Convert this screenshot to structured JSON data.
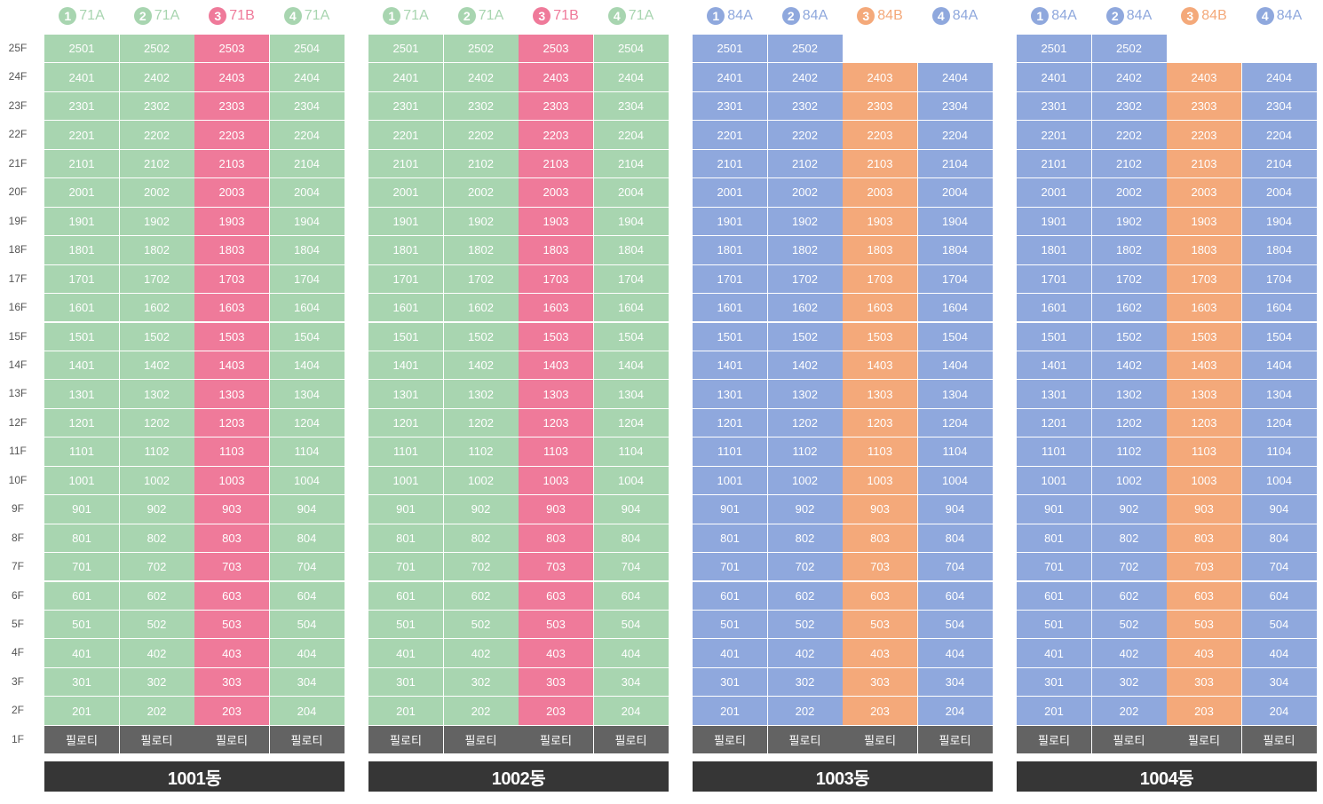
{
  "floors": [
    "25F",
    "24F",
    "23F",
    "22F",
    "21F",
    "20F",
    "19F",
    "18F",
    "17F",
    "16F",
    "15F",
    "14F",
    "13F",
    "12F",
    "11F",
    "10F",
    "9F",
    "8F",
    "7F",
    "6F",
    "5F",
    "4F",
    "3F",
    "2F",
    "1F"
  ],
  "piloti_label": "필로티",
  "colors": {
    "71A": "#a8d5b0",
    "71B": "#ef7a9a",
    "84A": "#8fa8dd",
    "84B": "#f4a97a",
    "piloti": "#636363",
    "name_bar": "#363636"
  },
  "buildings": [
    {
      "name": "1001동",
      "columns": [
        {
          "num": "1",
          "type": "71A",
          "top_floor": 25
        },
        {
          "num": "2",
          "type": "71A",
          "top_floor": 25
        },
        {
          "num": "3",
          "type": "71B",
          "top_floor": 25
        },
        {
          "num": "4",
          "type": "71A",
          "top_floor": 25
        }
      ]
    },
    {
      "name": "1002동",
      "columns": [
        {
          "num": "1",
          "type": "71A",
          "top_floor": 25
        },
        {
          "num": "2",
          "type": "71A",
          "top_floor": 25
        },
        {
          "num": "3",
          "type": "71B",
          "top_floor": 25
        },
        {
          "num": "4",
          "type": "71A",
          "top_floor": 25
        }
      ]
    },
    {
      "name": "1003동",
      "columns": [
        {
          "num": "1",
          "type": "84A",
          "top_floor": 25
        },
        {
          "num": "2",
          "type": "84A",
          "top_floor": 25
        },
        {
          "num": "3",
          "type": "84B",
          "top_floor": 24
        },
        {
          "num": "4",
          "type": "84A",
          "top_floor": 24
        }
      ]
    },
    {
      "name": "1004동",
      "columns": [
        {
          "num": "1",
          "type": "84A",
          "top_floor": 25
        },
        {
          "num": "2",
          "type": "84A",
          "top_floor": 25
        },
        {
          "num": "3",
          "type": "84B",
          "top_floor": 24
        },
        {
          "num": "4",
          "type": "84A",
          "top_floor": 24
        }
      ]
    }
  ]
}
